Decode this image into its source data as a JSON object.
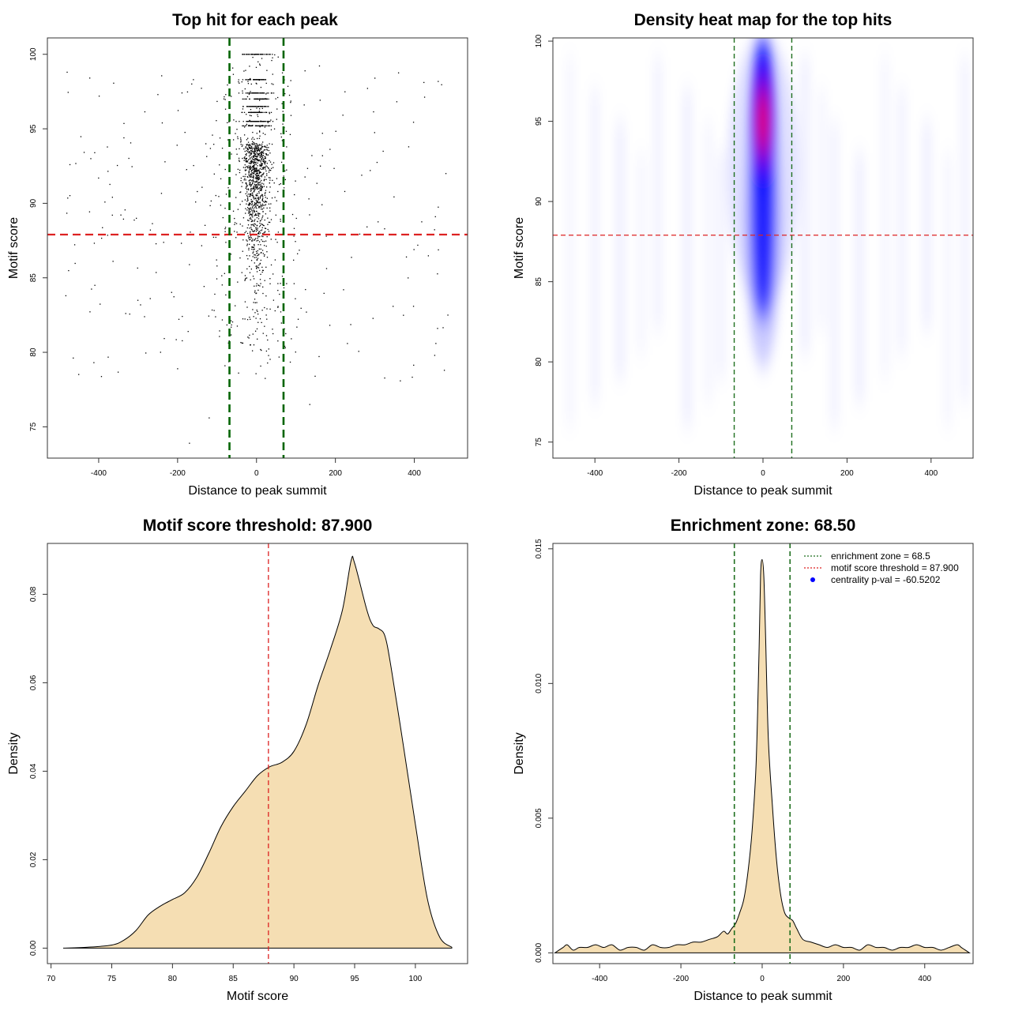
{
  "colors": {
    "threshold_line": "#dd2222",
    "zone_line": "#1f6f1f",
    "zone_line_dark": "#006400",
    "density_fill": "#f5deb3",
    "heat_low": "#ffffff",
    "heat_mid": "#0000ff",
    "heat_high": "#ff0000",
    "legend_dot": "#0000ff"
  },
  "chart_data": [
    {
      "type": "scatter",
      "title": "Top hit for each peak",
      "xlabel": "Distance to peak summit",
      "ylabel": "Motif score",
      "xlim": [
        -530,
        535
      ],
      "ylim": [
        72.9,
        101.1
      ],
      "xticks": [
        -400,
        -200,
        0,
        200,
        400
      ],
      "yticks": [
        75,
        80,
        85,
        90,
        95,
        100
      ],
      "hline": 87.9,
      "vlines": [
        -68.5,
        68.5
      ],
      "point_count": 1850,
      "sample_points": [
        [
          -10,
          100
        ],
        [
          15,
          100
        ],
        [
          40,
          100
        ],
        [
          -160,
          98.3
        ],
        [
          -480,
          98.8
        ],
        [
          -250,
          97.3
        ],
        [
          300,
          98.4
        ],
        [
          -420,
          93
        ],
        [
          480,
          92
        ],
        [
          -200,
          78.9
        ],
        [
          -80,
          79.1
        ],
        [
          135,
          76.5
        ],
        [
          -170,
          73.9
        ],
        [
          -120,
          75.6
        ],
        [
          0,
          94
        ],
        [
          10,
          91
        ],
        [
          -5,
          86
        ],
        [
          20,
          83
        ],
        [
          -15,
          80.5
        ],
        [
          485,
          82.5
        ]
      ],
      "grid": false
    },
    {
      "type": "heatmap",
      "title": "Density heat map for the top hits",
      "xlabel": "Distance to peak summit",
      "ylabel": "Motif score",
      "xlim": [
        -500,
        500
      ],
      "ylim": [
        74,
        100.2
      ],
      "xticks": [
        -400,
        -200,
        0,
        200,
        400
      ],
      "yticks": [
        75,
        80,
        85,
        90,
        95,
        100
      ],
      "hline": 87.9,
      "vlines": [
        -68.5,
        68.5
      ],
      "hotspot": {
        "x": 0,
        "y": 95
      }
    },
    {
      "type": "area",
      "title": "Motif score threshold: 87.900",
      "xlabel": "Motif score",
      "ylabel": "Density",
      "xlim": [
        69.7,
        104.3
      ],
      "ylim": [
        -0.0035,
        0.0915
      ],
      "xticks": [
        70,
        75,
        80,
        85,
        90,
        95,
        100
      ],
      "yticks": [
        0.0,
        0.02,
        0.04,
        0.06,
        0.08
      ],
      "ytick_labels": [
        "0.00",
        "0.02",
        "0.04",
        "0.06",
        "0.08"
      ],
      "vline": 87.9,
      "x": [
        71,
        73,
        75,
        76,
        77,
        78,
        79,
        80,
        81,
        82,
        83,
        84,
        85,
        86,
        87,
        88,
        89,
        90,
        91,
        92,
        93,
        94,
        94.7,
        95,
        96,
        96.5,
        97,
        97.5,
        98,
        99,
        100,
        101,
        102,
        103
      ],
      "y": [
        0.0,
        0.0002,
        0.0007,
        0.0018,
        0.004,
        0.0075,
        0.0095,
        0.011,
        0.0125,
        0.016,
        0.0215,
        0.0275,
        0.032,
        0.0355,
        0.039,
        0.041,
        0.042,
        0.0445,
        0.0505,
        0.0595,
        0.0675,
        0.0765,
        0.0875,
        0.087,
        0.0765,
        0.073,
        0.0722,
        0.0705,
        0.0635,
        0.046,
        0.028,
        0.011,
        0.0025,
        0.0002
      ]
    },
    {
      "type": "area",
      "title": "Enrichment zone: 68.50",
      "xlabel": "Distance to peak summit",
      "ylabel": "Density",
      "xlim": [
        -515,
        519
      ],
      "ylim": [
        -0.0004,
        0.0152
      ],
      "xticks": [
        -400,
        -200,
        0,
        200,
        400
      ],
      "yticks": [
        0.0,
        0.005,
        0.01,
        0.015
      ],
      "ytick_labels": [
        "0.000",
        "0.005",
        "0.010",
        "0.015"
      ],
      "vlines": [
        -68.5,
        68.5
      ],
      "x": [
        -510,
        -490,
        -480,
        -465,
        -450,
        -430,
        -410,
        -390,
        -370,
        -350,
        -330,
        -310,
        -290,
        -270,
        -250,
        -230,
        -210,
        -190,
        -170,
        -150,
        -130,
        -110,
        -95,
        -85,
        -75,
        -65,
        -55,
        -45,
        -35,
        -25,
        -15,
        -8,
        -4,
        0,
        4,
        8,
        15,
        25,
        35,
        45,
        55,
        65,
        75,
        85,
        100,
        120,
        140,
        160,
        180,
        200,
        220,
        240,
        260,
        280,
        300,
        320,
        340,
        360,
        380,
        400,
        420,
        440,
        460,
        480,
        490,
        500,
        510
      ],
      "y": [
        0.0,
        0.0002,
        0.0003,
        0.0001,
        0.0002,
        0.0002,
        0.0003,
        0.0002,
        0.0003,
        0.0001,
        0.0002,
        0.0002,
        0.0001,
        0.0003,
        0.0002,
        0.0002,
        0.0003,
        0.0003,
        0.0004,
        0.0004,
        0.0005,
        0.0006,
        0.0008,
        0.0007,
        0.0009,
        0.0011,
        0.0015,
        0.002,
        0.003,
        0.0045,
        0.007,
        0.011,
        0.014,
        0.0146,
        0.014,
        0.012,
        0.008,
        0.0055,
        0.0035,
        0.0022,
        0.0015,
        0.0013,
        0.0012,
        0.0009,
        0.0005,
        0.0004,
        0.0003,
        0.0002,
        0.0003,
        0.0002,
        0.0002,
        0.0001,
        0.0003,
        0.0002,
        0.0002,
        0.0001,
        0.0002,
        0.0002,
        0.0003,
        0.0002,
        0.0002,
        0.0001,
        0.0002,
        0.0003,
        0.0002,
        0.0001,
        0.0
      ],
      "legend": {
        "placement": "top-right",
        "items": [
          "enrichment zone = 68.5",
          "motif score threshold = 87.900",
          "centrality p-val = -60.5202"
        ]
      }
    }
  ]
}
